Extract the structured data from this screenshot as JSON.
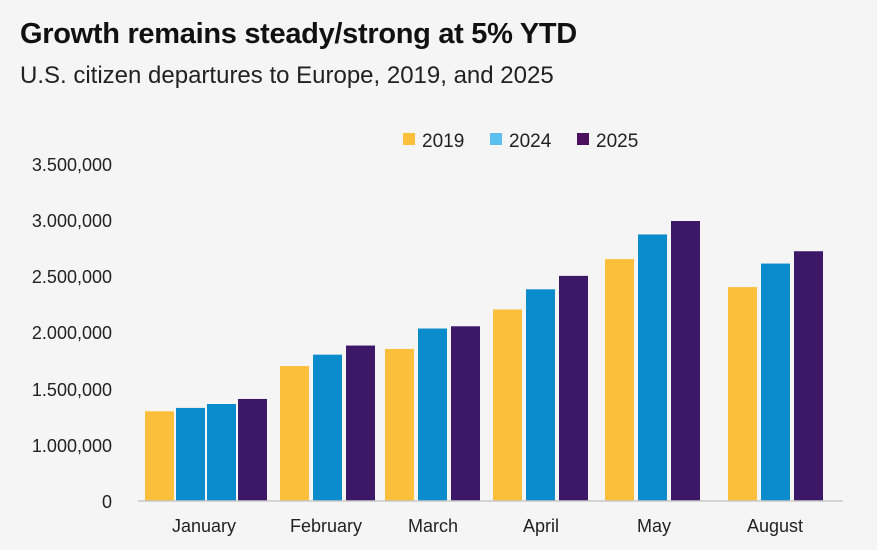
{
  "chart_data": {
    "type": "bar",
    "title": "Growth remains steady/strong at 5% YTD",
    "subtitle": "U.S. citizen departures to Europe, 2019, and 2025",
    "xlabel": "",
    "ylabel": "",
    "categories": [
      "January",
      "February",
      "March",
      "April",
      "May",
      "August"
    ],
    "series": [
      {
        "name": "2019",
        "color": "#fbbf3c",
        "values": [
          1310000,
          1710000,
          1860000,
          2210000,
          2660000,
          2410000
        ]
      },
      {
        "name": "2024",
        "color": "#0a8ccc",
        "values": [
          1340000,
          1810000,
          2040000,
          2390000,
          2880000,
          2620000
        ]
      },
      {
        "name": "2024",
        "color": "#0a8ccc",
        "values": [
          1375000,
          null,
          null,
          null,
          null,
          null
        ],
        "legend": false
      },
      {
        "name": "2025",
        "color": "#3d1768",
        "values": [
          1420000,
          1890000,
          2060000,
          2510000,
          3000000,
          2730000
        ]
      }
    ],
    "legend": {
      "position": "top-center",
      "entries": [
        {
          "label": "2019",
          "color": "#fbbf3c"
        },
        {
          "label": "2024",
          "color": "#5bc0ef"
        },
        {
          "label": "2025",
          "color": "#4b0f5e"
        }
      ]
    },
    "y_ticks": [
      {
        "value": 0,
        "label": "0"
      },
      {
        "value": 1000000,
        "label": "1.000,000"
      },
      {
        "value": 1500000,
        "label": "1.500,000"
      },
      {
        "value": 2000000,
        "label": "2.000,000"
      },
      {
        "value": 2500000,
        "label": "2.500,000"
      },
      {
        "value": 3000000,
        "label": "3.000,000"
      },
      {
        "value": 3500000,
        "label": "3.500,000"
      }
    ],
    "ylim": [
      0,
      3500000
    ],
    "grid": false
  }
}
